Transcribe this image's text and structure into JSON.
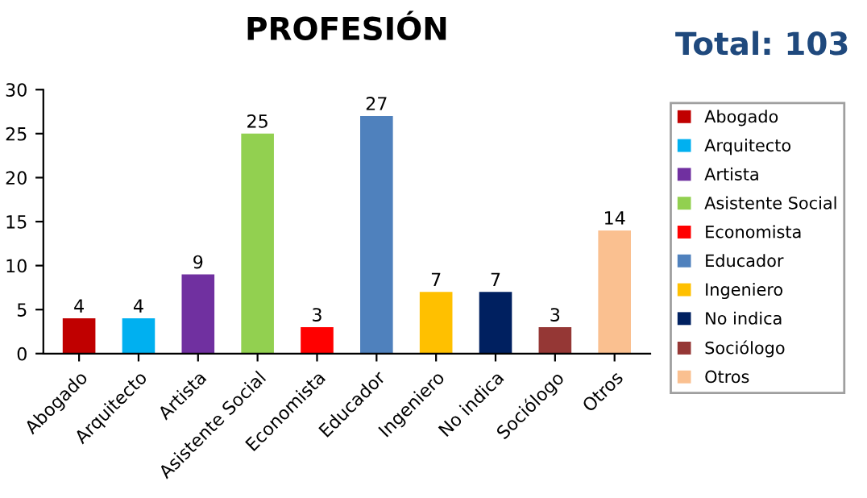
{
  "chart_data": {
    "type": "bar",
    "title": "PROFESIÓN",
    "annotations": [
      "Total: 103"
    ],
    "categories": [
      "Abogado",
      "Arquitecto",
      "Artista",
      "Asistente Social",
      "Economista",
      "Educador",
      "Ingeniero",
      "No indica",
      "Sociólogo",
      "Otros"
    ],
    "series": [
      {
        "name": "Abogado",
        "color": "#c00000",
        "values": [
          4,
          null,
          null,
          null,
          null,
          null,
          null,
          null,
          null,
          null
        ]
      },
      {
        "name": "Arquitecto",
        "color": "#00b0f0",
        "values": [
          null,
          4,
          null,
          null,
          null,
          null,
          null,
          null,
          null,
          null
        ]
      },
      {
        "name": "Artista",
        "color": "#7030a0",
        "values": [
          null,
          null,
          9,
          null,
          null,
          null,
          null,
          null,
          null,
          null
        ]
      },
      {
        "name": "Asistente Social",
        "color": "#92d050",
        "values": [
          null,
          null,
          null,
          25,
          null,
          null,
          null,
          null,
          null,
          null
        ]
      },
      {
        "name": "Economista",
        "color": "#ff0000",
        "values": [
          null,
          null,
          null,
          null,
          3,
          null,
          null,
          null,
          null,
          null
        ]
      },
      {
        "name": "Educador",
        "color": "#4f81bd",
        "values": [
          null,
          null,
          null,
          null,
          null,
          27,
          null,
          null,
          null,
          null
        ]
      },
      {
        "name": "Ingeniero",
        "color": "#ffc000",
        "values": [
          null,
          null,
          null,
          null,
          null,
          null,
          7,
          null,
          null,
          null
        ]
      },
      {
        "name": "No indica",
        "color": "#002060",
        "values": [
          null,
          null,
          null,
          null,
          null,
          null,
          null,
          7,
          null,
          null
        ]
      },
      {
        "name": "Sociólogo",
        "color": "#953735",
        "values": [
          null,
          null,
          null,
          null,
          null,
          null,
          null,
          null,
          3,
          null
        ]
      },
      {
        "name": "Otros",
        "color": "#fac090",
        "values": [
          null,
          null,
          null,
          null,
          null,
          null,
          null,
          null,
          null,
          14
        ]
      }
    ],
    "ylim": [
      0,
      30
    ],
    "yticks": [
      0,
      5,
      10,
      15,
      20,
      25,
      30
    ],
    "data_labels": true,
    "legend": "right",
    "grid": false
  }
}
